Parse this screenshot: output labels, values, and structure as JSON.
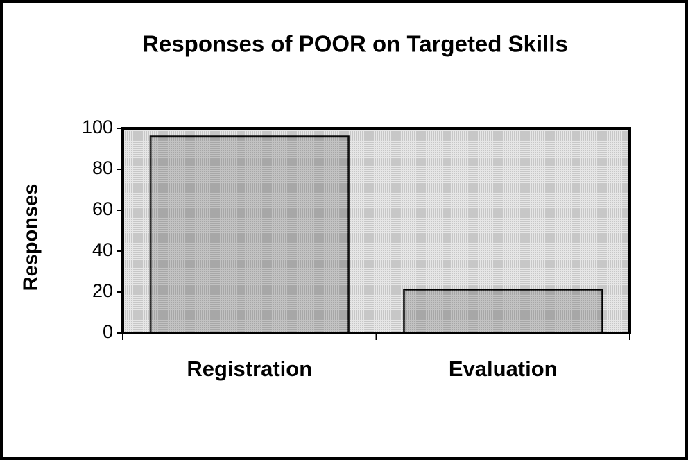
{
  "chart_data": {
    "type": "bar",
    "title": "Responses of POOR on Targeted Skills",
    "y_label": "Responses",
    "categories": [
      "Registration",
      "Evaluation"
    ],
    "values": [
      96,
      21
    ],
    "color": "#a8a8a8",
    "plot_background": "#d9d9d9",
    "ylim": [
      0,
      100
    ],
    "yticks": [
      0,
      20,
      40,
      60,
      80,
      100
    ]
  }
}
